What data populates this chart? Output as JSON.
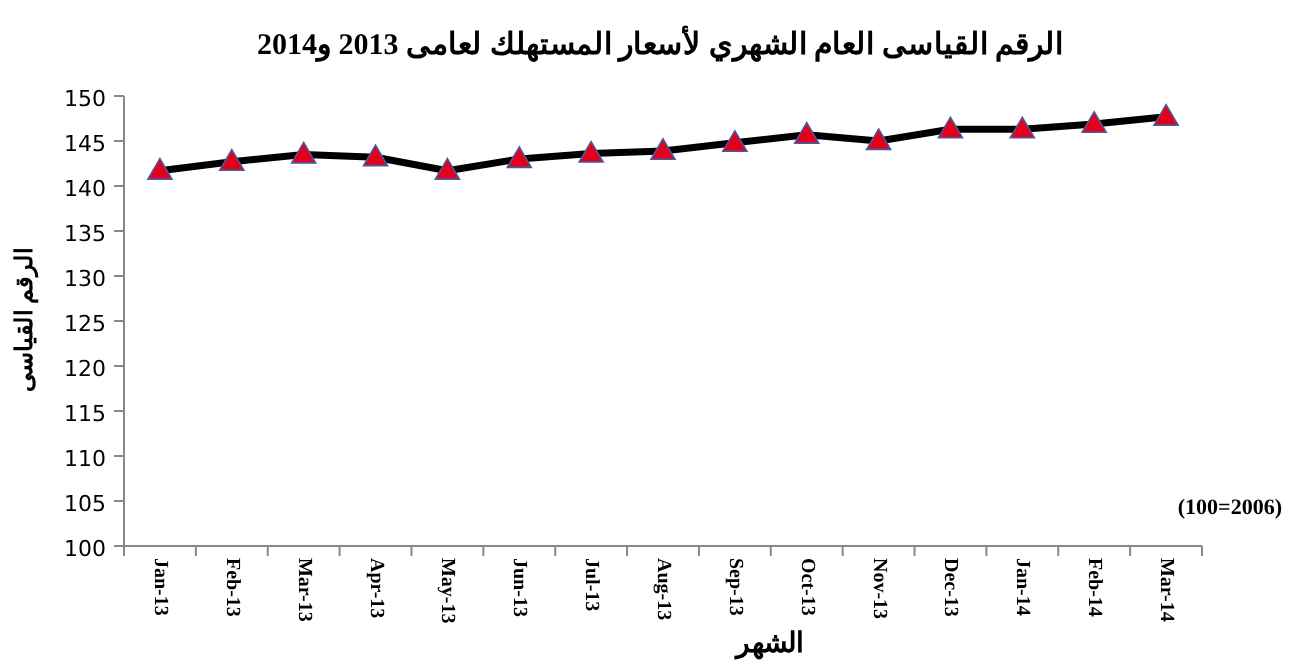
{
  "chart_data": {
    "type": "line",
    "title": "الرقم القياسى العام الشهري لأسعار المستهلك لعامى 2013 و2014",
    "xlabel": "الشهر",
    "ylabel": "الرقم القياسى",
    "annotations": [
      "(100=2006)"
    ],
    "categories": [
      "Jan-13",
      "Feb-13",
      "Mar-13",
      "Apr-13",
      "May-13",
      "Jun-13",
      "Jul-13",
      "Aug-13",
      "Sep-13",
      "Oct-13",
      "Nov-13",
      "Dec-13",
      "Jan-14",
      "Feb-14",
      "Mar-14"
    ],
    "series": [
      {
        "color": "#000000",
        "values": [
          141.7,
          142.7,
          143.5,
          143.2,
          141.7,
          143.0,
          143.6,
          143.9,
          144.8,
          145.7,
          145.0,
          146.3,
          146.3,
          146.9,
          147.7
        ]
      }
    ],
    "marker": "triangle",
    "line_style": "solid",
    "ylim": [
      100,
      150
    ],
    "yticks": [
      100,
      105,
      110,
      115,
      120,
      125,
      130,
      135,
      140,
      145,
      150
    ],
    "grid": false
  }
}
